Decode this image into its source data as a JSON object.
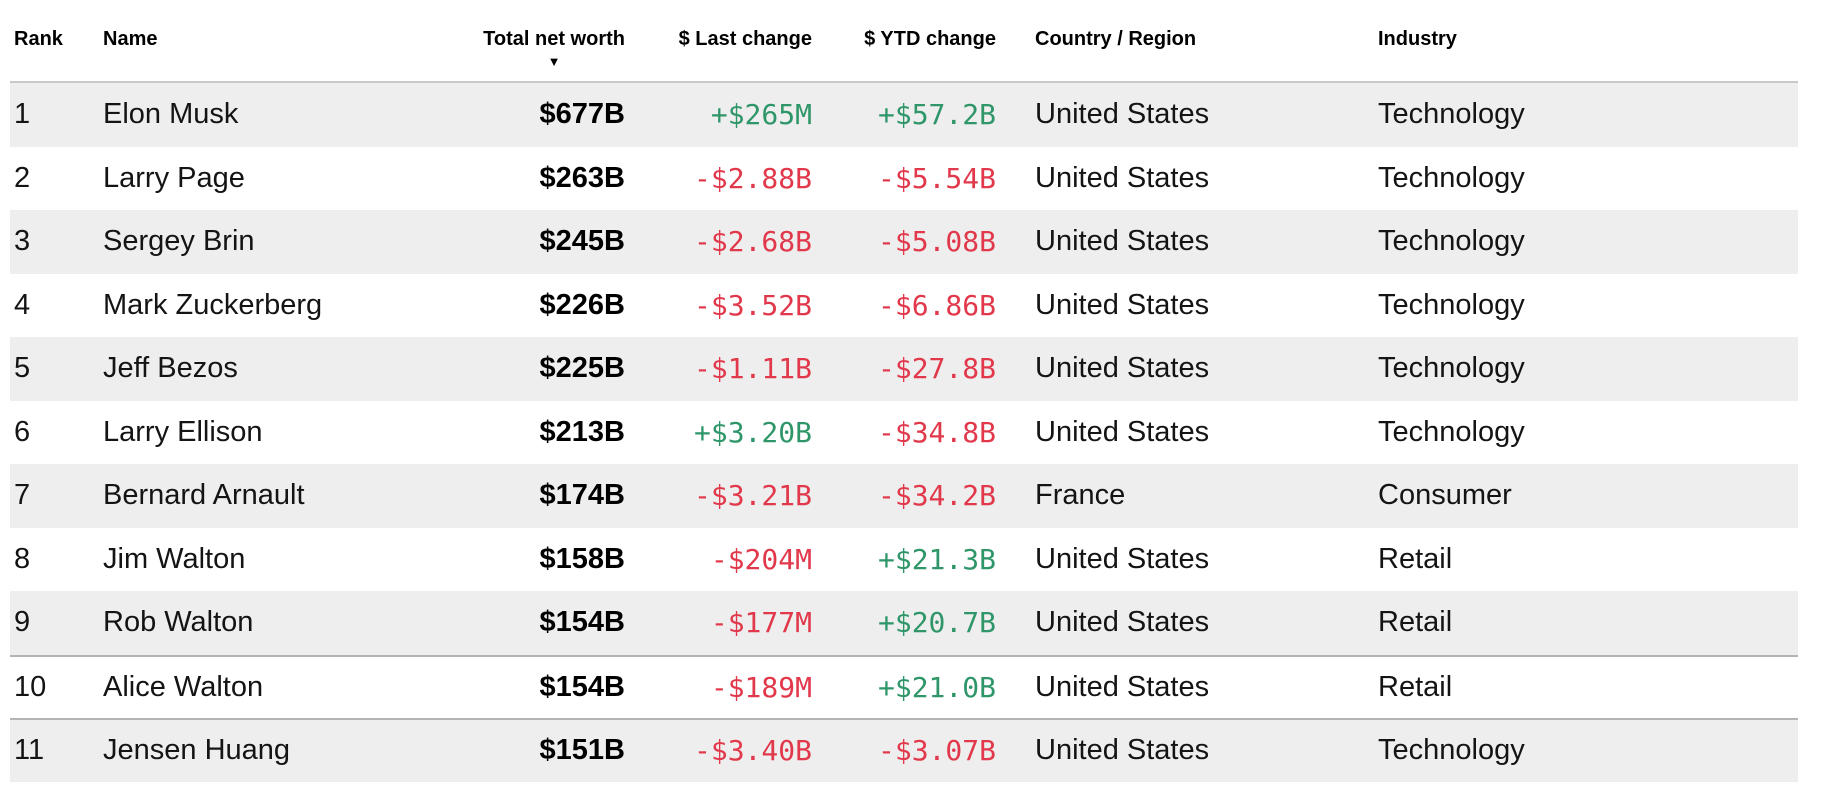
{
  "table": {
    "columns": [
      {
        "id": "rank",
        "label": "Rank"
      },
      {
        "id": "name",
        "label": "Name"
      },
      {
        "id": "net_worth",
        "label": "Total net worth",
        "sorted": "desc"
      },
      {
        "id": "last_change",
        "label": "$ Last change"
      },
      {
        "id": "ytd_change",
        "label": "$ YTD change"
      },
      {
        "id": "country",
        "label": "Country / Region"
      },
      {
        "id": "industry",
        "label": "Industry"
      }
    ],
    "sort_icon": "▼",
    "rows": [
      {
        "rank": "1",
        "name": "Elon Musk",
        "net_worth": "$677B",
        "last_change": "+$265M",
        "ytd_change": "+$57.2B",
        "country": "United States",
        "industry": "Technology",
        "striped": true,
        "divider_top": false
      },
      {
        "rank": "2",
        "name": "Larry Page",
        "net_worth": "$263B",
        "last_change": "-$2.88B",
        "ytd_change": "-$5.54B",
        "country": "United States",
        "industry": "Technology",
        "striped": false,
        "divider_top": false
      },
      {
        "rank": "3",
        "name": "Sergey Brin",
        "net_worth": "$245B",
        "last_change": "-$2.68B",
        "ytd_change": "-$5.08B",
        "country": "United States",
        "industry": "Technology",
        "striped": true,
        "divider_top": false
      },
      {
        "rank": "4",
        "name": "Mark Zuckerberg",
        "net_worth": "$226B",
        "last_change": "-$3.52B",
        "ytd_change": "-$6.86B",
        "country": "United States",
        "industry": "Technology",
        "striped": false,
        "divider_top": false
      },
      {
        "rank": "5",
        "name": "Jeff Bezos",
        "net_worth": "$225B",
        "last_change": "-$1.11B",
        "ytd_change": "-$27.8B",
        "country": "United States",
        "industry": "Technology",
        "striped": true,
        "divider_top": false
      },
      {
        "rank": "6",
        "name": "Larry Ellison",
        "net_worth": "$213B",
        "last_change": "+$3.20B",
        "ytd_change": "-$34.8B",
        "country": "United States",
        "industry": "Technology",
        "striped": false,
        "divider_top": false
      },
      {
        "rank": "7",
        "name": "Bernard Arnault",
        "net_worth": "$174B",
        "last_change": "-$3.21B",
        "ytd_change": "-$34.2B",
        "country": "France",
        "industry": "Consumer",
        "striped": true,
        "divider_top": false
      },
      {
        "rank": "8",
        "name": "Jim Walton",
        "net_worth": "$158B",
        "last_change": "-$204M",
        "ytd_change": "+$21.3B",
        "country": "United States",
        "industry": "Retail",
        "striped": false,
        "divider_top": false
      },
      {
        "rank": "9",
        "name": "Rob Walton",
        "net_worth": "$154B",
        "last_change": "-$177M",
        "ytd_change": "+$20.7B",
        "country": "United States",
        "industry": "Retail",
        "striped": true,
        "divider_top": false
      },
      {
        "rank": "10",
        "name": "Alice Walton",
        "net_worth": "$154B",
        "last_change": "-$189M",
        "ytd_change": "+$21.0B",
        "country": "United States",
        "industry": "Retail",
        "striped": false,
        "divider_top": true
      },
      {
        "rank": "11",
        "name": "Jensen Huang",
        "net_worth": "$151B",
        "last_change": "-$3.40B",
        "ytd_change": "-$3.07B",
        "country": "United States",
        "industry": "Technology",
        "striped": true,
        "divider_top": true
      }
    ]
  },
  "colors": {
    "positive": "#2f9669",
    "negative": "#e1394b",
    "stripe": "#eeeeee",
    "divider_line": "#b3b3b3",
    "header_line": "#c9c9c9"
  }
}
